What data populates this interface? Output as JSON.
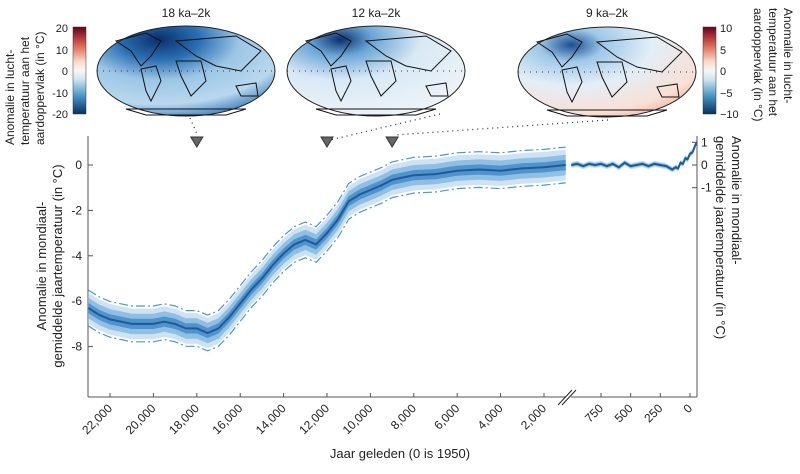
{
  "chart_data": {
    "type": "line",
    "xlabel": "Jaar geleden (0 is 1950)",
    "ylabel_left": [
      "Anomalie in mondiaal-",
      "gemiddelde jaartemperatuur (in °C)"
    ],
    "ylabel_right": [
      "Anomalie in mondiaal-",
      "gemiddelde jaartemperatuur (in °C)"
    ],
    "left_panel": {
      "xlim": [
        23000,
        1000
      ],
      "ylim": [
        -10.1,
        1.3
      ],
      "xticks": [
        22000,
        20000,
        18000,
        16000,
        14000,
        12000,
        10000,
        8000,
        6000,
        4000,
        2000
      ],
      "xtick_labels": [
        "22,000",
        "20,000",
        "18,000",
        "16,000",
        "14,000",
        "12,000",
        "10,000",
        "8,000",
        "6,000",
        "4,000",
        "2,000"
      ],
      "yticks": [
        0,
        -2,
        -4,
        -6,
        -8
      ],
      "ytick_labels": [
        "0",
        "-2",
        "-4",
        "-6",
        "-8"
      ],
      "x": [
        23000,
        22500,
        22000,
        21500,
        21000,
        20500,
        20000,
        19500,
        19000,
        18500,
        18000,
        17500,
        17000,
        16500,
        16000,
        15500,
        15000,
        14500,
        14000,
        13500,
        13000,
        12500,
        12000,
        11500,
        11000,
        10500,
        10000,
        9500,
        9000,
        8500,
        8000,
        7000,
        6000,
        5000,
        4000,
        3000,
        2000,
        1000
      ],
      "mean": [
        -6.3,
        -6.6,
        -6.8,
        -6.9,
        -7.0,
        -7.0,
        -7.0,
        -6.9,
        -7.0,
        -7.2,
        -7.2,
        -7.4,
        -7.2,
        -6.7,
        -6.1,
        -5.5,
        -5.0,
        -4.4,
        -3.9,
        -3.5,
        -3.3,
        -3.5,
        -3.0,
        -2.4,
        -1.6,
        -1.3,
        -1.1,
        -0.9,
        -0.65,
        -0.55,
        -0.45,
        -0.4,
        -0.25,
        -0.2,
        -0.25,
        -0.15,
        -0.1,
        0.0
      ],
      "uncertainty": 0.75
    },
    "right_panel": {
      "xlim": [
        1000,
        -55
      ],
      "ylim": [
        -10.1,
        1.3
      ],
      "xticks": [
        750,
        500,
        250,
        0
      ],
      "xtick_labels": [
        "750",
        "500",
        "250",
        "0"
      ],
      "yticks": [
        1,
        0,
        -1
      ],
      "ytick_labels": [
        "1",
        "0",
        "-1"
      ],
      "x": [
        1000,
        950,
        900,
        850,
        800,
        750,
        700,
        650,
        600,
        550,
        500,
        450,
        400,
        350,
        300,
        250,
        200,
        150,
        120,
        100,
        80,
        60,
        40,
        20,
        0,
        -20,
        -40,
        -55
      ],
      "mean": [
        0.0,
        0.05,
        -0.05,
        0.05,
        0.0,
        0.05,
        -0.05,
        0.05,
        -0.1,
        0.1,
        -0.05,
        0.0,
        0.05,
        -0.05,
        0.05,
        0.0,
        -0.05,
        -0.2,
        -0.1,
        -0.15,
        0.1,
        0.05,
        0.3,
        0.25,
        0.5,
        0.55,
        0.8,
        1.0
      ],
      "uncertainty": 0.15
    },
    "break_symbol": "//",
    "markers_years": [
      18000,
      12000,
      9000
    ]
  },
  "maps": [
    {
      "title": "18 ka–2k",
      "marker_year": 18000
    },
    {
      "title": "12 ka–2k",
      "marker_year": 12000
    },
    {
      "title": "9 ka–2k",
      "marker_year": 9000
    }
  ],
  "colorbar_left": {
    "label": [
      "Anomalie in lucht-",
      "temperatuur aan het",
      "aardoppervlak (in °C)"
    ],
    "ticks": [
      "20",
      "10",
      "0",
      "-10",
      "-20"
    ]
  },
  "colorbar_right": {
    "label": [
      "Anomalie in lucht-",
      "temperatuur aan het",
      "aardoppervlak (in °C)"
    ],
    "ticks": [
      "10",
      "5",
      "0",
      "−5",
      "−10"
    ]
  },
  "colors": {
    "line": "#1f5a9a",
    "band_outer": "#cfe2f3",
    "band_mid": "#8fbfe3",
    "band_inner": "#4f94cc",
    "dash": "#4a97d4",
    "cold": "#08306b",
    "warm": "#b2182b"
  }
}
